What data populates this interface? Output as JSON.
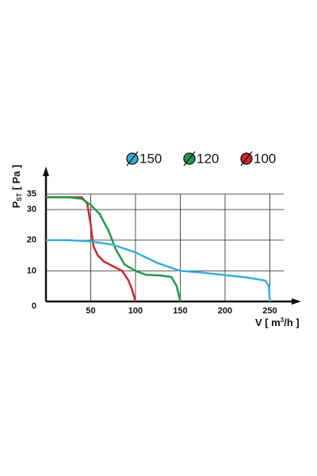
{
  "chart_data": {
    "type": "line",
    "ylabel": {
      "main": "P",
      "sub": "ST",
      "unit": "[ Pa ]"
    },
    "xlabel": {
      "main": "V [ m",
      "sup": "3",
      "unit": "/h ]"
    },
    "xlim": [
      0,
      285
    ],
    "ylim": [
      0,
      44
    ],
    "xticks": [
      50,
      100,
      150,
      200,
      250
    ],
    "yticks": [
      0,
      10,
      20,
      30,
      35
    ],
    "grid": true,
    "series": [
      {
        "name": "100",
        "color": "#d0262b",
        "x": [
          0,
          40,
          46,
          50,
          53,
          58,
          65,
          75,
          85,
          92,
          96,
          100
        ],
        "values": [
          34,
          34,
          32,
          25,
          18,
          15,
          13,
          11.5,
          10,
          7,
          4,
          0
        ]
      },
      {
        "name": "120",
        "color": "#1f9a4c",
        "x": [
          0,
          25,
          40,
          50,
          60,
          70,
          78,
          88,
          100,
          112,
          128,
          140,
          146,
          150
        ],
        "values": [
          34,
          34,
          33.5,
          31.5,
          28.5,
          23,
          17,
          12,
          10,
          8.7,
          8.5,
          8,
          5,
          0
        ]
      },
      {
        "name": "150",
        "color": "#37aedb",
        "x": [
          0,
          25,
          50,
          75,
          100,
          125,
          150,
          175,
          200,
          225,
          245,
          249,
          250
        ],
        "values": [
          20,
          20,
          19.6,
          18.5,
          16,
          12.5,
          10,
          9.4,
          8.6,
          7.8,
          6.8,
          5,
          0
        ]
      }
    ]
  }
}
